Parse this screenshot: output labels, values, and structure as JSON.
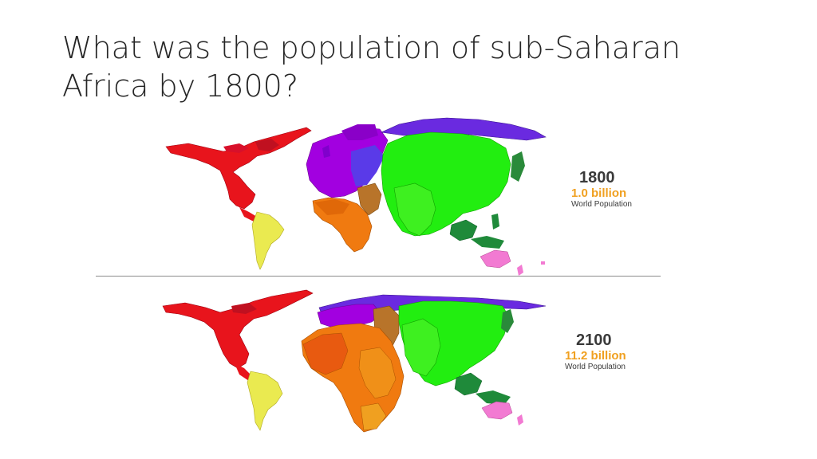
{
  "title": {
    "line1": "What was the population of sub-Saharan",
    "line2": "Africa by 1800?"
  },
  "maps": [
    {
      "year": "1800",
      "population": "1.0 billion",
      "label": "World Population"
    },
    {
      "year": "2100",
      "population": "11.2 billion",
      "label": "World Population"
    }
  ],
  "colors": {
    "north_america": "#e8141c",
    "south_america": "#eaea50",
    "europe": "#a200e0",
    "africa": "#f07a10",
    "middle_east": "#b8742a",
    "asia": "#22ee10",
    "southeast_asia": "#1f8a3a",
    "oceania": "#f27ad2",
    "russia": "#6a2ae0",
    "population_text": "#f0a020"
  }
}
